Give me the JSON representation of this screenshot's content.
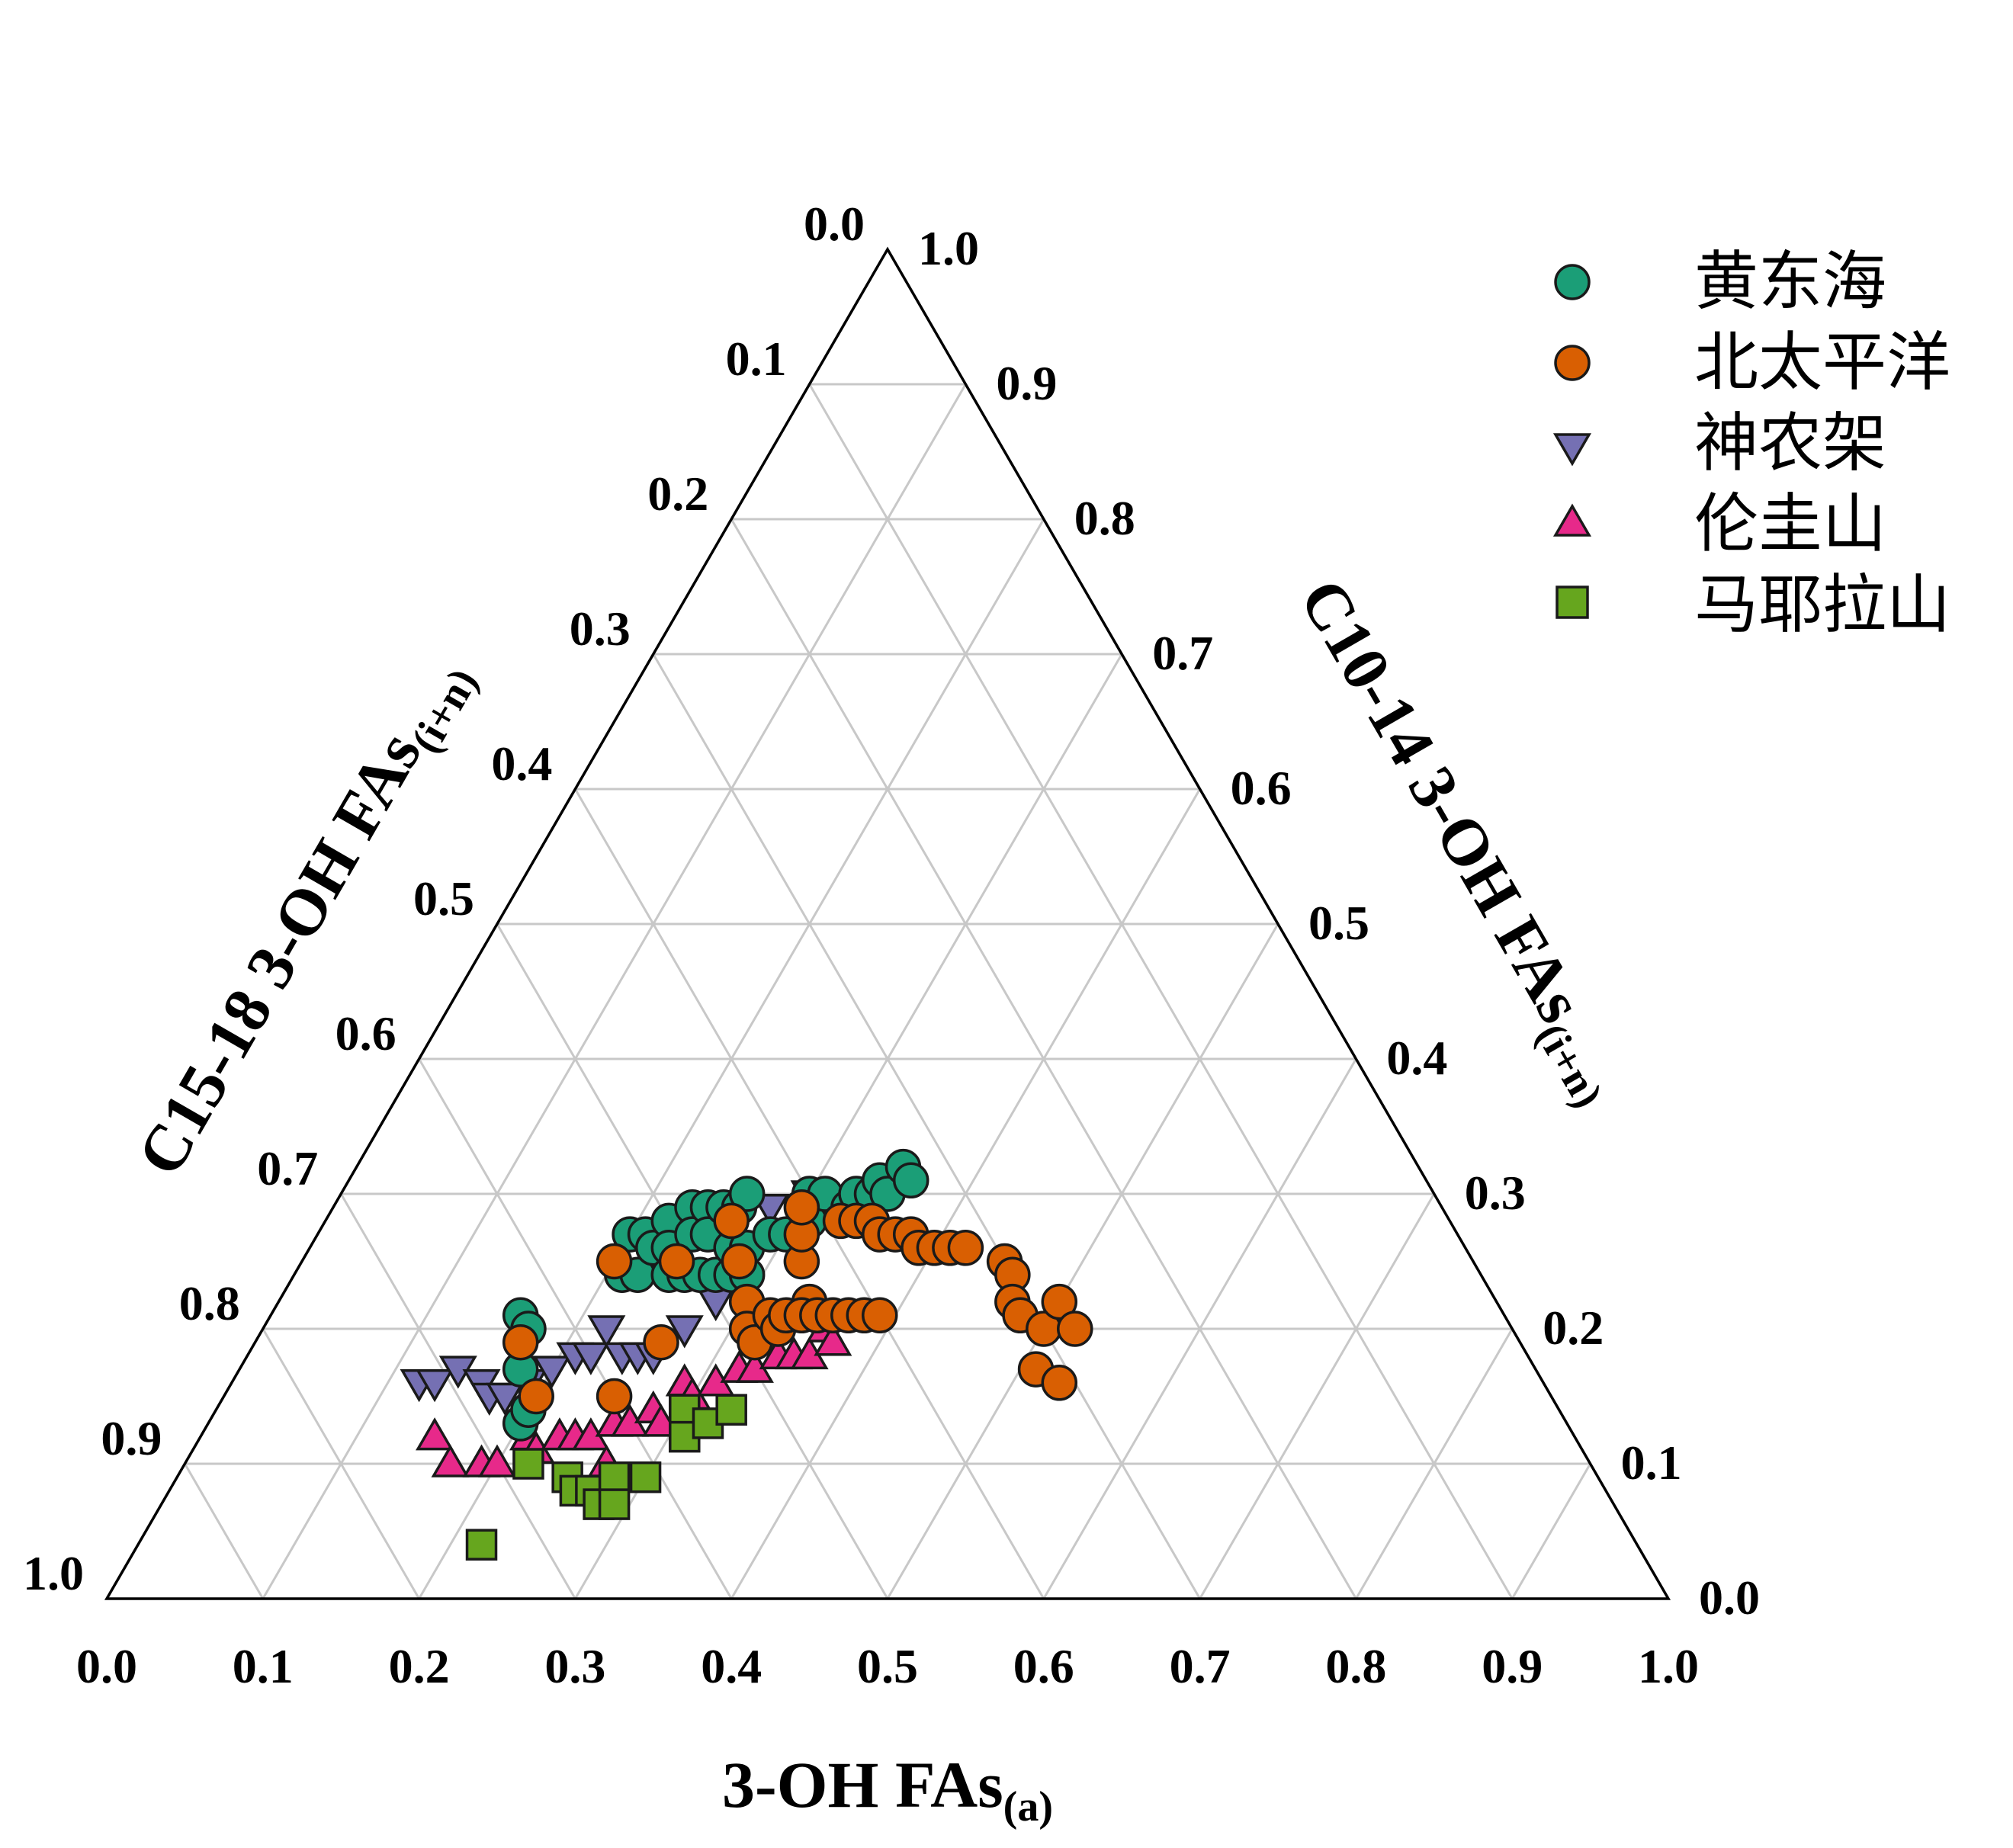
{
  "chart_data": {
    "type": "scatter",
    "subtype": "ternary",
    "axes": {
      "bottom": {
        "label": "3-OH FAs",
        "label_sub": "(a)",
        "ticks": [
          "0.0",
          "0.1",
          "0.2",
          "0.3",
          "0.4",
          "0.5",
          "0.6",
          "0.7",
          "0.8",
          "0.9",
          "1.0"
        ]
      },
      "left": {
        "label": "C15-18 3-OH FAs",
        "label_sub": "(i+n)",
        "ticks": [
          "0.0",
          "0.1",
          "0.2",
          "0.3",
          "0.4",
          "0.5",
          "0.6",
          "0.7",
          "0.8",
          "0.9",
          "1.0"
        ]
      },
      "right": {
        "label": "C10-14 3-OH FAs",
        "label_sub": "(i+n)",
        "ticks": [
          "1.0",
          "0.9",
          "0.8",
          "0.7",
          "0.6",
          "0.5",
          "0.4",
          "0.3",
          "0.2",
          "0.1",
          "0.0"
        ]
      }
    },
    "grid": true,
    "legend_position": "top-right",
    "series": [
      {
        "name": "黄东海",
        "marker": "circle",
        "color": "#1b9e77",
        "points": [
          {
            "a": 0.16,
            "b": 0.63,
            "c": 0.21
          },
          {
            "a": 0.17,
            "b": 0.63,
            "c": 0.2
          },
          {
            "a": 0.18,
            "b": 0.65,
            "c": 0.17
          },
          {
            "a": 0.2,
            "b": 0.67,
            "c": 0.13
          },
          {
            "a": 0.2,
            "b": 0.66,
            "c": 0.14
          },
          {
            "a": 0.2,
            "b": 0.53,
            "c": 0.27
          },
          {
            "a": 0.21,
            "b": 0.55,
            "c": 0.24
          },
          {
            "a": 0.21,
            "b": 0.52,
            "c": 0.27
          },
          {
            "a": 0.22,
            "b": 0.54,
            "c": 0.24
          },
          {
            "a": 0.22,
            "b": 0.52,
            "c": 0.26
          },
          {
            "a": 0.22,
            "b": 0.5,
            "c": 0.28
          },
          {
            "a": 0.23,
            "b": 0.51,
            "c": 0.26
          },
          {
            "a": 0.23,
            "b": 0.48,
            "c": 0.29
          },
          {
            "a": 0.24,
            "b": 0.52,
            "c": 0.24
          },
          {
            "a": 0.24,
            "b": 0.49,
            "c": 0.27
          },
          {
            "a": 0.24,
            "b": 0.47,
            "c": 0.29
          },
          {
            "a": 0.25,
            "b": 0.51,
            "c": 0.24
          },
          {
            "a": 0.25,
            "b": 0.48,
            "c": 0.27
          },
          {
            "a": 0.25,
            "b": 0.46,
            "c": 0.29
          },
          {
            "a": 0.26,
            "b": 0.5,
            "c": 0.24
          },
          {
            "a": 0.26,
            "b": 0.45,
            "c": 0.29
          },
          {
            "a": 0.26,
            "b": 0.44,
            "c": 0.3
          },
          {
            "a": 0.27,
            "b": 0.49,
            "c": 0.24
          },
          {
            "a": 0.27,
            "b": 0.47,
            "c": 0.26
          },
          {
            "a": 0.28,
            "b": 0.48,
            "c": 0.24
          },
          {
            "a": 0.28,
            "b": 0.46,
            "c": 0.26
          },
          {
            "a": 0.29,
            "b": 0.47,
            "c": 0.24
          },
          {
            "a": 0.29,
            "b": 0.44,
            "c": 0.27
          },
          {
            "a": 0.3,
            "b": 0.43,
            "c": 0.27
          },
          {
            "a": 0.3,
            "b": 0.4,
            "c": 0.3
          },
          {
            "a": 0.31,
            "b": 0.41,
            "c": 0.28
          },
          {
            "a": 0.31,
            "b": 0.39,
            "c": 0.3
          },
          {
            "a": 0.33,
            "b": 0.38,
            "c": 0.29
          },
          {
            "a": 0.33,
            "b": 0.37,
            "c": 0.3
          },
          {
            "a": 0.34,
            "b": 0.36,
            "c": 0.3
          },
          {
            "a": 0.34,
            "b": 0.35,
            "c": 0.31
          },
          {
            "a": 0.35,
            "b": 0.35,
            "c": 0.3
          },
          {
            "a": 0.35,
            "b": 0.33,
            "c": 0.32
          },
          {
            "a": 0.36,
            "b": 0.33,
            "c": 0.31
          }
        ]
      },
      {
        "name": "北太平洋",
        "marker": "circle",
        "color": "#d95f02",
        "points": [
          {
            "a": 0.17,
            "b": 0.64,
            "c": 0.19
          },
          {
            "a": 0.2,
            "b": 0.65,
            "c": 0.15
          },
          {
            "a": 0.2,
            "b": 0.55,
            "c": 0.25
          },
          {
            "a": 0.25,
            "b": 0.6,
            "c": 0.15
          },
          {
            "a": 0.26,
            "b": 0.55,
            "c": 0.19
          },
          {
            "a": 0.24,
            "b": 0.51,
            "c": 0.25
          },
          {
            "a": 0.26,
            "b": 0.46,
            "c": 0.28
          },
          {
            "a": 0.28,
            "b": 0.47,
            "c": 0.25
          },
          {
            "a": 0.3,
            "b": 0.48,
            "c": 0.22
          },
          {
            "a": 0.31,
            "b": 0.49,
            "c": 0.2
          },
          {
            "a": 0.32,
            "b": 0.49,
            "c": 0.19
          },
          {
            "a": 0.32,
            "b": 0.47,
            "c": 0.21
          },
          {
            "a": 0.33,
            "b": 0.47,
            "c": 0.2
          },
          {
            "a": 0.33,
            "b": 0.46,
            "c": 0.21
          },
          {
            "a": 0.34,
            "b": 0.44,
            "c": 0.22
          },
          {
            "a": 0.34,
            "b": 0.45,
            "c": 0.21
          },
          {
            "a": 0.35,
            "b": 0.44,
            "c": 0.21
          },
          {
            "a": 0.32,
            "b": 0.43,
            "c": 0.25
          },
          {
            "a": 0.31,
            "b": 0.42,
            "c": 0.27
          },
          {
            "a": 0.36,
            "b": 0.43,
            "c": 0.21
          },
          {
            "a": 0.37,
            "b": 0.42,
            "c": 0.21
          },
          {
            "a": 0.38,
            "b": 0.41,
            "c": 0.21
          },
          {
            "a": 0.39,
            "b": 0.4,
            "c": 0.21
          },
          {
            "a": 0.3,
            "b": 0.41,
            "c": 0.29
          },
          {
            "a": 0.33,
            "b": 0.39,
            "c": 0.28
          },
          {
            "a": 0.34,
            "b": 0.38,
            "c": 0.28
          },
          {
            "a": 0.35,
            "b": 0.37,
            "c": 0.28
          },
          {
            "a": 0.36,
            "b": 0.37,
            "c": 0.27
          },
          {
            "a": 0.37,
            "b": 0.36,
            "c": 0.27
          },
          {
            "a": 0.38,
            "b": 0.35,
            "c": 0.27
          },
          {
            "a": 0.39,
            "b": 0.35,
            "c": 0.26
          },
          {
            "a": 0.4,
            "b": 0.34,
            "c": 0.26
          },
          {
            "a": 0.41,
            "b": 0.33,
            "c": 0.26
          },
          {
            "a": 0.42,
            "b": 0.32,
            "c": 0.26
          },
          {
            "a": 0.45,
            "b": 0.3,
            "c": 0.25
          },
          {
            "a": 0.46,
            "b": 0.3,
            "c": 0.24
          },
          {
            "a": 0.47,
            "b": 0.31,
            "c": 0.22
          },
          {
            "a": 0.48,
            "b": 0.31,
            "c": 0.21
          },
          {
            "a": 0.5,
            "b": 0.3,
            "c": 0.2
          },
          {
            "a": 0.5,
            "b": 0.28,
            "c": 0.22
          },
          {
            "a": 0.52,
            "b": 0.28,
            "c": 0.2
          },
          {
            "a": 0.51,
            "b": 0.32,
            "c": 0.17
          },
          {
            "a": 0.53,
            "b": 0.31,
            "c": 0.16
          }
        ]
      },
      {
        "name": "神农架",
        "marker": "triangle-down",
        "color": "#7570b3",
        "points": [
          {
            "a": 0.12,
            "b": 0.72,
            "c": 0.16
          },
          {
            "a": 0.13,
            "b": 0.71,
            "c": 0.16
          },
          {
            "a": 0.14,
            "b": 0.69,
            "c": 0.17
          },
          {
            "a": 0.16,
            "b": 0.68,
            "c": 0.16
          },
          {
            "a": 0.17,
            "b": 0.68,
            "c": 0.15
          },
          {
            "a": 0.18,
            "b": 0.67,
            "c": 0.15
          },
          {
            "a": 0.19,
            "b": 0.65,
            "c": 0.16
          },
          {
            "a": 0.2,
            "b": 0.63,
            "c": 0.17
          },
          {
            "a": 0.21,
            "b": 0.61,
            "c": 0.18
          },
          {
            "a": 0.22,
            "b": 0.6,
            "c": 0.18
          },
          {
            "a": 0.22,
            "b": 0.58,
            "c": 0.2
          },
          {
            "a": 0.24,
            "b": 0.58,
            "c": 0.18
          },
          {
            "a": 0.25,
            "b": 0.57,
            "c": 0.18
          },
          {
            "a": 0.26,
            "b": 0.56,
            "c": 0.18
          },
          {
            "a": 0.27,
            "b": 0.53,
            "c": 0.2
          },
          {
            "a": 0.28,
            "b": 0.5,
            "c": 0.22
          },
          {
            "a": 0.28,
            "b": 0.43,
            "c": 0.29
          },
          {
            "a": 0.3,
            "b": 0.4,
            "c": 0.3
          }
        ]
      },
      {
        "name": "伦圭山",
        "marker": "triangle-up",
        "color": "#e7298a",
        "points": [
          {
            "a": 0.15,
            "b": 0.73,
            "c": 0.12
          },
          {
            "a": 0.17,
            "b": 0.73,
            "c": 0.1
          },
          {
            "a": 0.19,
            "b": 0.71,
            "c": 0.1
          },
          {
            "a": 0.2,
            "b": 0.7,
            "c": 0.1
          },
          {
            "a": 0.21,
            "b": 0.67,
            "c": 0.12
          },
          {
            "a": 0.22,
            "b": 0.67,
            "c": 0.11
          },
          {
            "a": 0.23,
            "b": 0.65,
            "c": 0.12
          },
          {
            "a": 0.24,
            "b": 0.64,
            "c": 0.12
          },
          {
            "a": 0.25,
            "b": 0.63,
            "c": 0.12
          },
          {
            "a": 0.27,
            "b": 0.63,
            "c": 0.1
          },
          {
            "a": 0.26,
            "b": 0.61,
            "c": 0.13
          },
          {
            "a": 0.27,
            "b": 0.6,
            "c": 0.13
          },
          {
            "a": 0.28,
            "b": 0.58,
            "c": 0.14
          },
          {
            "a": 0.29,
            "b": 0.58,
            "c": 0.13
          },
          {
            "a": 0.29,
            "b": 0.55,
            "c": 0.16
          },
          {
            "a": 0.3,
            "b": 0.55,
            "c": 0.15
          },
          {
            "a": 0.31,
            "b": 0.53,
            "c": 0.16
          },
          {
            "a": 0.32,
            "b": 0.51,
            "c": 0.17
          },
          {
            "a": 0.33,
            "b": 0.5,
            "c": 0.17
          },
          {
            "a": 0.34,
            "b": 0.48,
            "c": 0.18
          },
          {
            "a": 0.35,
            "b": 0.47,
            "c": 0.18
          },
          {
            "a": 0.36,
            "b": 0.46,
            "c": 0.18
          },
          {
            "a": 0.36,
            "b": 0.44,
            "c": 0.2
          },
          {
            "a": 0.37,
            "b": 0.44,
            "c": 0.19
          }
        ]
      },
      {
        "name": "马耶拉山",
        "marker": "square",
        "color": "#66a61e",
        "points": [
          {
            "a": 0.22,
            "b": 0.74,
            "c": 0.04
          },
          {
            "a": 0.22,
            "b": 0.68,
            "c": 0.1
          },
          {
            "a": 0.25,
            "b": 0.66,
            "c": 0.09
          },
          {
            "a": 0.26,
            "b": 0.66,
            "c": 0.08
          },
          {
            "a": 0.27,
            "b": 0.65,
            "c": 0.08
          },
          {
            "a": 0.28,
            "b": 0.65,
            "c": 0.07
          },
          {
            "a": 0.28,
            "b": 0.63,
            "c": 0.09
          },
          {
            "a": 0.29,
            "b": 0.64,
            "c": 0.07
          },
          {
            "a": 0.3,
            "b": 0.61,
            "c": 0.09
          },
          {
            "a": 0.3,
            "b": 0.56,
            "c": 0.14
          },
          {
            "a": 0.31,
            "b": 0.57,
            "c": 0.12
          },
          {
            "a": 0.32,
            "b": 0.55,
            "c": 0.13
          },
          {
            "a": 0.33,
            "b": 0.53,
            "c": 0.14
          }
        ]
      }
    ]
  },
  "legend": {
    "items": [
      {
        "label": "黄东海",
        "marker": "circle",
        "color": "#1b9e77"
      },
      {
        "label": "北太平洋",
        "marker": "circle",
        "color": "#d95f02"
      },
      {
        "label": "神农架",
        "marker": "triangle-down",
        "color": "#7570b3"
      },
      {
        "label": "伦圭山",
        "marker": "triangle-up",
        "color": "#e7298a"
      },
      {
        "label": "马耶拉山",
        "marker": "square",
        "color": "#66a61e"
      }
    ]
  }
}
